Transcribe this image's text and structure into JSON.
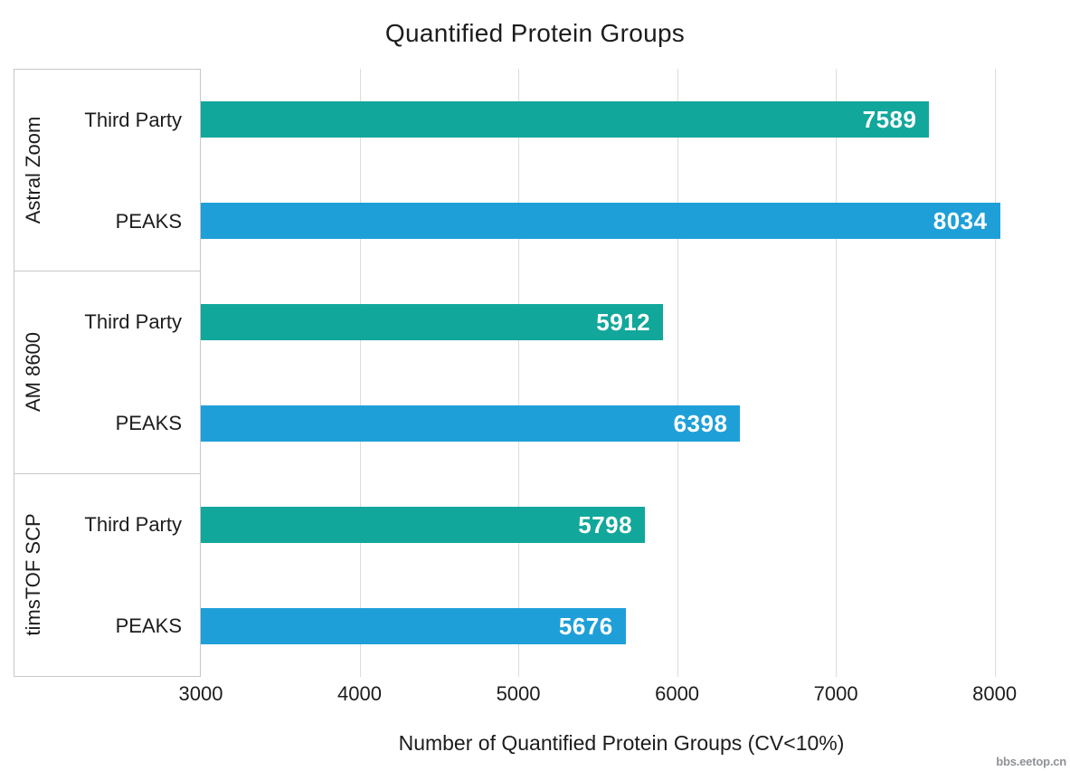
{
  "watermark": {
    "text": "bbs.eetop.cn"
  },
  "chart_data": {
    "type": "bar",
    "orientation": "horizontal",
    "title": "Quantified Protein Groups",
    "xlabel": "Number of Quantified Protein Groups (CV<10%)",
    "ylabel": "",
    "groups": [
      "Astral Zoom",
      "AM 8600",
      "timsTOF SCP"
    ],
    "series": [
      {
        "name": "Third Party",
        "color": "#12a79b",
        "values": [
          7589,
          5912,
          5798
        ]
      },
      {
        "name": "PEAKS",
        "color": "#1f9fd8",
        "values": [
          8034,
          6398,
          5676
        ]
      }
    ],
    "xlim": [
      3000,
      8475
    ],
    "xticks": [
      3000,
      4000,
      5000,
      6000,
      7000,
      8000
    ],
    "grid": "vertical",
    "legend": "none",
    "bar_value_labels": true,
    "colors": {
      "gridline": "#dcdcdc",
      "border": "#c7c7c7",
      "text": "#1c1c1c",
      "value_label": "#ffffff",
      "watermark": "#8f9296"
    }
  }
}
